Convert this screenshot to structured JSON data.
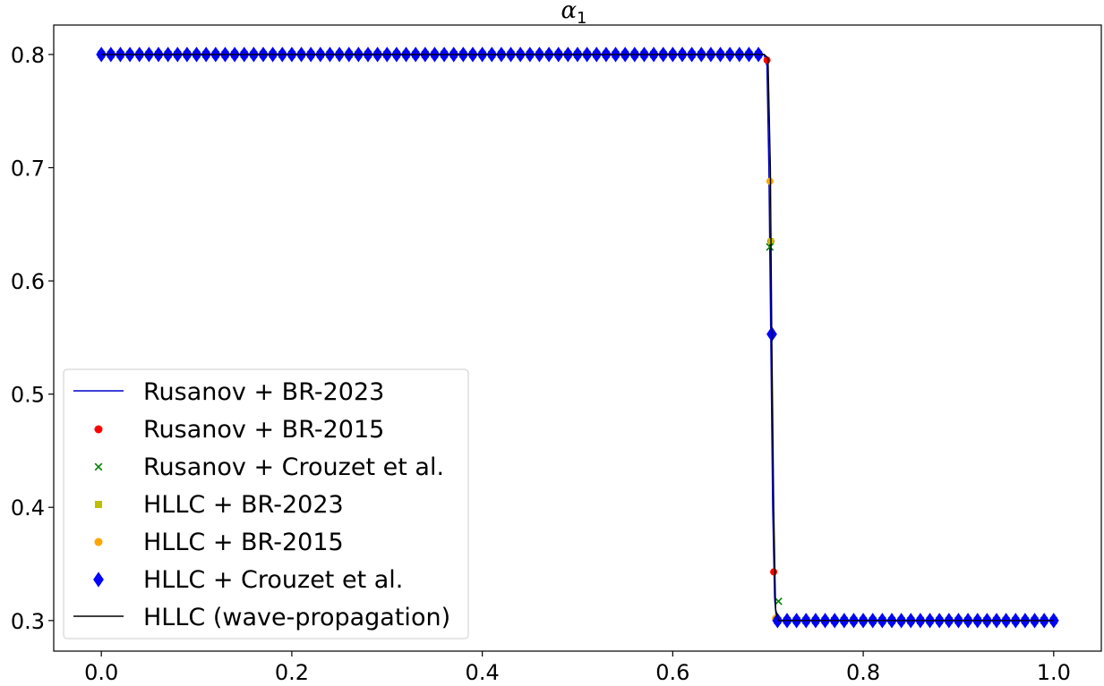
{
  "chart_data": {
    "type": "line",
    "title": "α",
    "title_subscript": "1",
    "xlim": [
      -0.05,
      1.05
    ],
    "ylim": [
      0.273,
      0.826
    ],
    "x_ticks": [
      0.0,
      0.2,
      0.4,
      0.6,
      0.8,
      1.0
    ],
    "x_tick_labels": [
      "0.0",
      "0.2",
      "0.4",
      "0.6",
      "0.8",
      "1.0"
    ],
    "y_ticks": [
      0.3,
      0.4,
      0.5,
      0.6,
      0.7,
      0.8
    ],
    "y_tick_labels": [
      "0.3",
      "0.4",
      "0.5",
      "0.6",
      "0.7",
      "0.8"
    ],
    "grid": false,
    "legend_position": "lower-left",
    "discontinuity_x": 0.7025,
    "left_state": 0.8,
    "right_state": 0.3,
    "marker_spacing": 0.01,
    "series": [
      {
        "name": "Rusanov + BR-2023",
        "style": "line",
        "color": "#0000cc",
        "points": [
          [
            0.0,
            0.8
          ],
          [
            0.69,
            0.8
          ],
          [
            0.696,
            0.8
          ],
          [
            0.699,
            0.79
          ],
          [
            0.701,
            0.7
          ],
          [
            0.703,
            0.55
          ],
          [
            0.705,
            0.4
          ],
          [
            0.707,
            0.32
          ],
          [
            0.709,
            0.3
          ],
          [
            0.72,
            0.3
          ],
          [
            1.0,
            0.3
          ]
        ]
      },
      {
        "name": "Rusanov + BR-2015",
        "style": "marker",
        "marker": "circle",
        "color": "#ff0000",
        "transition_points": [
          [
            0.699,
            0.795
          ],
          [
            0.703,
            0.635
          ],
          [
            0.706,
            0.343
          ]
        ]
      },
      {
        "name": "Rusanov + Crouzet et al.",
        "style": "marker",
        "marker": "x",
        "color": "#008000",
        "transition_points": [
          [
            0.702,
            0.63
          ],
          [
            0.711,
            0.317
          ]
        ]
      },
      {
        "name": "HLLC + BR-2023",
        "style": "marker",
        "marker": "square",
        "color": "#bfbf00",
        "transition_points": [
          [
            0.703,
            0.635
          ]
        ]
      },
      {
        "name": "HLLC + BR-2015",
        "style": "marker",
        "marker": "circle",
        "color": "#ffa500",
        "transition_points": [
          [
            0.702,
            0.688
          ],
          [
            0.708,
            0.302
          ]
        ]
      },
      {
        "name": "HLLC + Crouzet et al.",
        "style": "marker",
        "marker": "diamond",
        "color": "#0000ff",
        "transition_points": [
          [
            0.704,
            0.553
          ]
        ]
      },
      {
        "name": "HLLC (wave-propagation)",
        "style": "line",
        "color": "#000000",
        "points": [
          [
            0.0,
            0.8
          ],
          [
            0.696,
            0.8
          ],
          [
            0.7,
            0.797
          ],
          [
            0.7025,
            0.7
          ],
          [
            0.704,
            0.55
          ],
          [
            0.706,
            0.4
          ],
          [
            0.708,
            0.31
          ],
          [
            0.711,
            0.3
          ],
          [
            1.0,
            0.3
          ]
        ]
      }
    ]
  }
}
